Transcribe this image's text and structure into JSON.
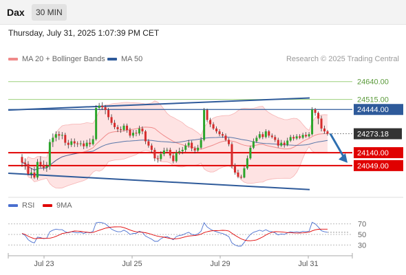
{
  "header": {
    "ticker": "Dax",
    "timeframe": "30 MIN"
  },
  "datetime": "Thursday, July 31, 2025 1:07:39 PM CET",
  "legend": {
    "ma20_bb": {
      "label": "MA 20 + Bollinger Bands",
      "color": "#f08a8a"
    },
    "ma50": {
      "label": "MA 50",
      "color": "#2e5a9a"
    }
  },
  "credit": "Research © 2025 Trading Central",
  "chart_data": {
    "type": "candlestick",
    "x_tick_labels": [
      "Jul 23",
      "Jul 25",
      "Jul 29",
      "Jul 31"
    ],
    "ylim": [
      23850,
      24750
    ],
    "price_levels": [
      {
        "label": "24640.00",
        "value": 24640,
        "style": "green-line"
      },
      {
        "label": "24515.00",
        "value": 24515,
        "style": "green-line"
      },
      {
        "label": "24444.00",
        "value": 24444,
        "style": "blue-box"
      },
      {
        "label": "24273.18",
        "value": 24273.18,
        "style": "dark-box"
      },
      {
        "label": "24140.00",
        "value": 24140,
        "style": "red-box"
      },
      {
        "label": "24049.00",
        "value": 24049,
        "style": "red-box"
      }
    ],
    "candles": [
      [
        24110,
        24070,
        24130,
        24040
      ],
      [
        24070,
        24060,
        24100,
        24020
      ],
      [
        24060,
        23990,
        24080,
        23980
      ],
      [
        23990,
        24000,
        24030,
        23960
      ],
      [
        24000,
        23965,
        24040,
        23955
      ],
      [
        23965,
        24075,
        24095,
        23950
      ],
      [
        24075,
        24055,
        24115,
        24035
      ],
      [
        24055,
        24035,
        24085,
        24015
      ],
      [
        24035,
        24045,
        24075,
        24005
      ],
      [
        24045,
        24215,
        24235,
        24020
      ],
      [
        24215,
        24245,
        24275,
        24180
      ],
      [
        24245,
        24270,
        24290,
        24220
      ],
      [
        24270,
        24260,
        24290,
        24230
      ],
      [
        24260,
        24265,
        24285,
        24235
      ],
      [
        24265,
        24210,
        24280,
        24190
      ],
      [
        24210,
        24195,
        24230,
        24170
      ],
      [
        24195,
        24220,
        24240,
        24180
      ],
      [
        24220,
        24205,
        24240,
        24180
      ],
      [
        24205,
        24200,
        24220,
        24180
      ],
      [
        24200,
        24205,
        24225,
        24185
      ],
      [
        24205,
        24185,
        24225,
        24165
      ],
      [
        24185,
        24210,
        24230,
        24170
      ],
      [
        24210,
        24200,
        24240,
        24180
      ],
      [
        24200,
        24235,
        24260,
        24190
      ],
      [
        24235,
        24455,
        24475,
        24225
      ],
      [
        24455,
        24470,
        24490,
        24440
      ],
      [
        24470,
        24460,
        24495,
        24440
      ],
      [
        24460,
        24440,
        24475,
        24410
      ],
      [
        24440,
        24390,
        24455,
        24370
      ],
      [
        24390,
        24350,
        24410,
        24335
      ],
      [
        24350,
        24320,
        24370,
        24305
      ],
      [
        24320,
        24305,
        24335,
        24285
      ],
      [
        24305,
        24300,
        24325,
        24280
      ],
      [
        24300,
        24330,
        24345,
        24290
      ],
      [
        24330,
        24300,
        24345,
        24280
      ],
      [
        24300,
        24260,
        24315,
        24245
      ],
      [
        24260,
        24280,
        24300,
        24245
      ],
      [
        24280,
        24275,
        24300,
        24255
      ],
      [
        24275,
        24310,
        24330,
        24260
      ],
      [
        24310,
        24290,
        24325,
        24270
      ],
      [
        24290,
        24220,
        24300,
        24200
      ],
      [
        24220,
        24190,
        24235,
        24175
      ],
      [
        24190,
        24160,
        24205,
        24140
      ],
      [
        24160,
        24100,
        24175,
        24080
      ],
      [
        24100,
        24095,
        24120,
        24070
      ],
      [
        24095,
        24130,
        24150,
        24080
      ],
      [
        24130,
        24155,
        24175,
        24115
      ],
      [
        24155,
        24160,
        24175,
        24140
      ],
      [
        24160,
        24120,
        24175,
        24100
      ],
      [
        24120,
        24080,
        24135,
        24065
      ],
      [
        24080,
        24140,
        24160,
        24070
      ],
      [
        24140,
        24150,
        24175,
        24125
      ],
      [
        24150,
        24160,
        24180,
        24130
      ],
      [
        24160,
        24190,
        24205,
        24145
      ],
      [
        24190,
        24210,
        24230,
        24175
      ],
      [
        24210,
        24170,
        24225,
        24150
      ],
      [
        24170,
        24155,
        24185,
        24135
      ],
      [
        24155,
        24175,
        24195,
        24145
      ],
      [
        24175,
        24230,
        24250,
        24165
      ],
      [
        24230,
        24440,
        24455,
        24220
      ],
      [
        24440,
        24370,
        24450,
        24355
      ],
      [
        24370,
        24340,
        24385,
        24320
      ],
      [
        24340,
        24310,
        24355,
        24300
      ],
      [
        24310,
        24290,
        24325,
        24275
      ],
      [
        24290,
        24270,
        24305,
        24255
      ],
      [
        24270,
        24260,
        24285,
        24245
      ],
      [
        24260,
        24230,
        24275,
        24220
      ],
      [
        24230,
        24200,
        24245,
        24185
      ],
      [
        24200,
        24050,
        24215,
        24030
      ],
      [
        24050,
        24000,
        24065,
        23985
      ],
      [
        24000,
        23970,
        24020,
        23960
      ],
      [
        23970,
        23965,
        23985,
        23955
      ],
      [
        23965,
        24030,
        24045,
        23960
      ],
      [
        24030,
        24100,
        24120,
        24020
      ],
      [
        24100,
        24175,
        24190,
        24090
      ],
      [
        24175,
        24220,
        24240,
        24165
      ],
      [
        24220,
        24245,
        24260,
        24210
      ],
      [
        24245,
        24270,
        24290,
        24235
      ],
      [
        24270,
        24250,
        24285,
        24235
      ],
      [
        24250,
        24290,
        24305,
        24240
      ],
      [
        24290,
        24260,
        24300,
        24245
      ],
      [
        24260,
        24250,
        24275,
        24240
      ],
      [
        24250,
        24230,
        24265,
        24215
      ],
      [
        24230,
        24190,
        24245,
        24175
      ],
      [
        24190,
        24210,
        24230,
        24180
      ],
      [
        24210,
        24195,
        24225,
        24175
      ],
      [
        24195,
        24225,
        24245,
        24185
      ],
      [
        24225,
        24250,
        24265,
        24215
      ],
      [
        24250,
        24240,
        24265,
        24225
      ],
      [
        24240,
        24255,
        24270,
        24230
      ],
      [
        24255,
        24245,
        24270,
        24235
      ],
      [
        24245,
        24265,
        24280,
        24235
      ],
      [
        24265,
        24255,
        24285,
        24245
      ],
      [
        24255,
        24270,
        24285,
        24245
      ],
      [
        24270,
        24445,
        24460,
        24260
      ],
      [
        24445,
        24420,
        24455,
        24400
      ],
      [
        24420,
        24380,
        24430,
        24340
      ],
      [
        24380,
        24310,
        24400,
        24290
      ],
      [
        24310,
        24290,
        24330,
        24275
      ],
      [
        24290,
        24273,
        24300,
        24260
      ]
    ],
    "forecast_arrow": {
      "from_index": 99,
      "from_price": 24273.18,
      "to_price": 24049
    },
    "rsi": {
      "labels": [
        "RSI",
        "9MA"
      ],
      "series_colors": [
        "#4a6fcf",
        "#e00000"
      ],
      "y_ticks": [
        70,
        50,
        30
      ],
      "ylim": [
        15,
        85
      ],
      "values": [
        52,
        48,
        40,
        36,
        34,
        45,
        44,
        42,
        43,
        55,
        58,
        60,
        59,
        59,
        55,
        53,
        55,
        54,
        53,
        54,
        52,
        54,
        53,
        56,
        72,
        73,
        72,
        70,
        65,
        60,
        57,
        55,
        55,
        58,
        55,
        50,
        52,
        52,
        56,
        54,
        47,
        44,
        41,
        37,
        37,
        42,
        45,
        46,
        43,
        40,
        46,
        48,
        49,
        52,
        54,
        50,
        49,
        51,
        56,
        72,
        64,
        60,
        57,
        55,
        53,
        52,
        49,
        46,
        34,
        30,
        28,
        28,
        35,
        43,
        50,
        54,
        56,
        58,
        56,
        59,
        56,
        55,
        53,
        49,
        51,
        50,
        53,
        55,
        54,
        55,
        54,
        56,
        55,
        56,
        73,
        70,
        64,
        57,
        55,
        54
      ]
    }
  }
}
